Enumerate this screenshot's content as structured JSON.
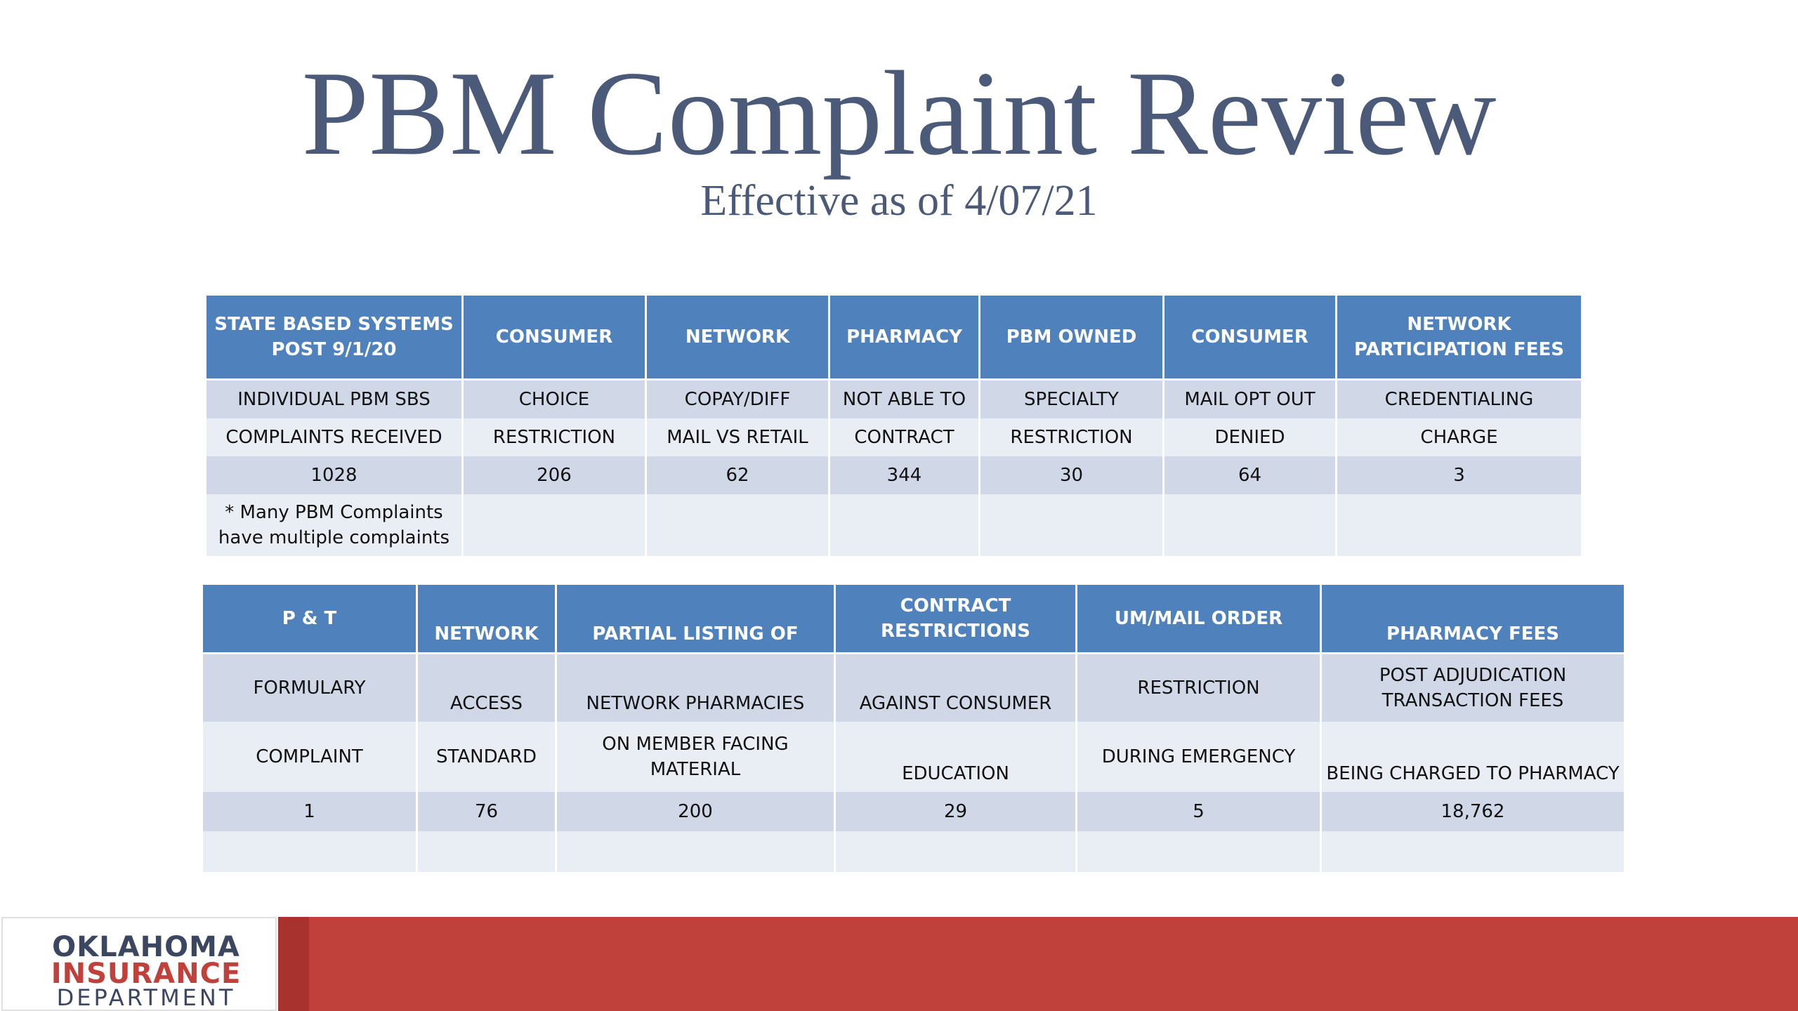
{
  "slide": {
    "title": "PBM Complaint Review",
    "subtitle": "Effective as of 4/07/21"
  },
  "table1": {
    "headers": [
      [
        "STATE BASED SYSTEMS",
        "POST 9/1/20"
      ],
      [
        "CONSUMER"
      ],
      [
        "NETWORK"
      ],
      [
        "PHARMACY"
      ],
      [
        "PBM OWNED"
      ],
      [
        "CONSUMER"
      ],
      [
        "NETWORK",
        "PARTICIPATION FEES"
      ]
    ],
    "row1": [
      "INDIVIDUAL PBM SBS",
      "CHOICE",
      "COPAY/DIFF",
      "NOT ABLE TO",
      "SPECIALTY",
      "MAIL OPT OUT",
      "CREDENTIALING"
    ],
    "row2": [
      "COMPLAINTS RECEIVED",
      "RESTRICTION",
      "MAIL VS RETAIL",
      "CONTRACT",
      "RESTRICTION",
      "DENIED",
      "CHARGE"
    ],
    "row3": [
      "1028",
      "206",
      "62",
      "344",
      "30",
      "64",
      "3"
    ],
    "note": [
      "* Many PBM Complaints",
      "have multiple complaints"
    ]
  },
  "table2": {
    "headers": [
      [
        "P & T"
      ],
      [
        "NETWORK"
      ],
      [
        "PARTIAL LISTING OF"
      ],
      [
        "CONTRACT",
        "RESTRICTIONS"
      ],
      [
        "UM/MAIL ORDER"
      ],
      [
        "PHARMACY FEES"
      ]
    ],
    "row1": [
      [
        "FORMULARY"
      ],
      [
        "ACCESS"
      ],
      [
        "NETWORK PHARMACIES"
      ],
      [
        "AGAINST CONSUMER"
      ],
      [
        "RESTRICTION"
      ],
      [
        "POST ADJUDICATION",
        "TRANSACTION FEES"
      ]
    ],
    "row2": [
      [
        "COMPLAINT"
      ],
      [
        "STANDARD"
      ],
      [
        "ON MEMBER FACING",
        "MATERIAL"
      ],
      [
        "EDUCATION"
      ],
      [
        "DURING EMERGENCY"
      ],
      [
        "BEING CHARGED TO PHARMACY"
      ]
    ],
    "row3": [
      "1",
      "76",
      "200",
      "29",
      "5",
      "18,762"
    ]
  },
  "footer": {
    "logo_line1": "OKLAHOMA",
    "logo_line2": "INSURANCE",
    "logo_line3": "DEPARTMENT",
    "bar_color": "#c0413c"
  }
}
